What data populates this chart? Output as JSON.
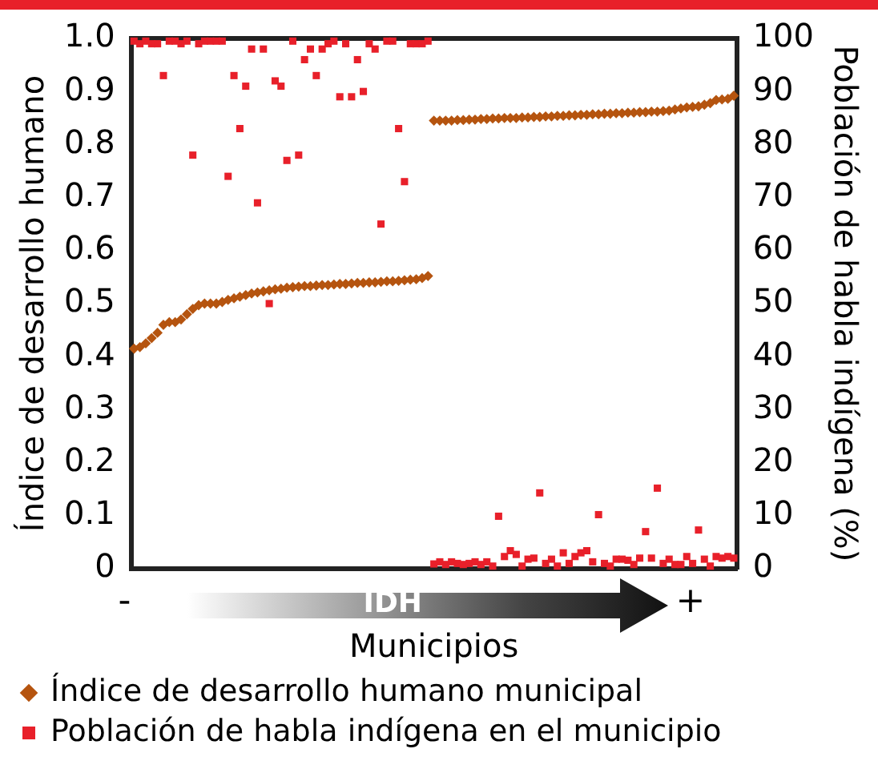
{
  "chart_data": {
    "type": "scatter",
    "xlabel": "Municipios",
    "ylabel": "Índice de desarrollo humano",
    "y2label": "Población de habla indígena (%)",
    "annotations": [
      "-",
      "IDH",
      "+"
    ],
    "categories": [
      null,
      null,
      null,
      null,
      null,
      null,
      null,
      null,
      null,
      null,
      null,
      null,
      null,
      null,
      null,
      null,
      null,
      null,
      null,
      null,
      null,
      null,
      null,
      null,
      null,
      null,
      null,
      null,
      null,
      null,
      null,
      null,
      null,
      null,
      null,
      null,
      null,
      null,
      null,
      null,
      null,
      null,
      null,
      null,
      null,
      null,
      null,
      null,
      null,
      null,
      null,
      null,
      null,
      null,
      null,
      null,
      null,
      null,
      null,
      null,
      null,
      null,
      null,
      null,
      null,
      null,
      null,
      null,
      null,
      null,
      null,
      null,
      null,
      null,
      null,
      null,
      null,
      null,
      null,
      null,
      null,
      null,
      null,
      null,
      null,
      null,
      null,
      null,
      null,
      null,
      null,
      null,
      null,
      null,
      null,
      null,
      null,
      null,
      null,
      null,
      null,
      null,
      null
    ],
    "series": [
      {
        "name": "Índice de desarrollo humano municipal",
        "color": "#b5540f",
        "marker": "diamond",
        "values": [
          0.415,
          0.418,
          0.425,
          0.435,
          0.445,
          0.46,
          0.465,
          0.465,
          0.47,
          0.48,
          0.49,
          0.497,
          0.5,
          0.5,
          0.5,
          0.503,
          0.507,
          0.51,
          0.513,
          0.516,
          0.519,
          0.521,
          0.523,
          0.525,
          0.527,
          0.528,
          0.53,
          0.531,
          0.532,
          0.533,
          0.533,
          0.534,
          0.535,
          0.535,
          0.536,
          0.537,
          0.537,
          0.538,
          0.539,
          0.539,
          0.54,
          0.54,
          0.541,
          0.542,
          0.542,
          0.543,
          0.544,
          0.545,
          0.546,
          0.548,
          0.552,
          0.845,
          0.845,
          0.845,
          0.845,
          0.846,
          0.846,
          0.847,
          0.847,
          0.848,
          0.848,
          0.849,
          0.849,
          0.85,
          0.85,
          0.85,
          0.851,
          0.851,
          0.852,
          0.852,
          0.853,
          0.853,
          0.854,
          0.854,
          0.855,
          0.855,
          0.856,
          0.856,
          0.857,
          0.857,
          0.858,
          0.858,
          0.859,
          0.859,
          0.86,
          0.86,
          0.861,
          0.861,
          0.862,
          0.862,
          0.863,
          0.864,
          0.866,
          0.868,
          0.87,
          0.871,
          0.872,
          0.875,
          0.878,
          0.884,
          0.885,
          0.886,
          0.892
        ]
      },
      {
        "name": "Población de habla indígena en el municipio",
        "color": "#e8202a",
        "marker": "square",
        "axis": "y2",
        "values": [
          99.5,
          99,
          99.5,
          99,
          99,
          93,
          99.5,
          99.5,
          99,
          99.5,
          78,
          99,
          99.5,
          99.5,
          99.5,
          99.5,
          74,
          93,
          83,
          91,
          98,
          69,
          98,
          50,
          92,
          91,
          77,
          99.5,
          78,
          96,
          98,
          93,
          98,
          99,
          99.5,
          89,
          99,
          89,
          96,
          90,
          99,
          98,
          65,
          99.5,
          99.5,
          83,
          73,
          99,
          99,
          99,
          99.5,
          0.9,
          1.3,
          0.8,
          1.3,
          1,
          0.8,
          1,
          1.3,
          0.8,
          1.3,
          0.5,
          9.9,
          2.3,
          3.4,
          2.7,
          0.5,
          1.8,
          2,
          14.3,
          1,
          1.8,
          0.5,
          3,
          1,
          2.3,
          3,
          3.4,
          1.3,
          10.2,
          1,
          0.5,
          1.8,
          1.8,
          1.6,
          0.8,
          2,
          7,
          2,
          15.2,
          1,
          1.8,
          0.8,
          0.8,
          2.3,
          1,
          7.3,
          1.8,
          0.5,
          2.3,
          2,
          2.3,
          2
        ]
      }
    ],
    "ylim": [
      0,
      1
    ],
    "yticks": [
      0,
      0.1,
      0.2,
      0.3,
      0.4,
      0.5,
      0.6,
      0.7,
      0.8,
      0.9,
      {
        "value": 1,
        "label": "1.0"
      }
    ],
    "y2lim": [
      0,
      100
    ],
    "y2ticks": [
      0,
      10,
      20,
      30,
      40,
      50,
      60,
      70,
      80,
      90,
      100
    ],
    "grid": false,
    "legend": "bottom"
  }
}
